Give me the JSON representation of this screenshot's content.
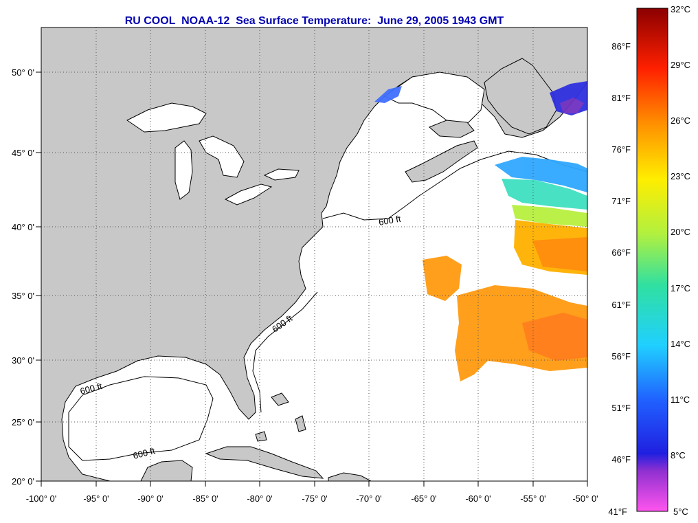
{
  "title": "RU COOL  NOAA-12  Sea Surface Temperature:  June 29, 2005 1943 GMT",
  "map": {
    "lon_labels": [
      "-100° 0'",
      "-95° 0'",
      "-90° 0'",
      "-85° 0'",
      "-80° 0'",
      "-75° 0'",
      "-70° 0'",
      "-65° 0'",
      "-60° 0'",
      "-55° 0'",
      "-50° 0'"
    ],
    "lat_labels": [
      "50° 0'",
      "45° 0'",
      "40° 0'",
      "35° 0'",
      "30° 0'",
      "25° 0'",
      "20° 0'"
    ],
    "contour_label": "600 ft",
    "colors": {
      "land": "#c8c8c8",
      "ocean": "#ffffff",
      "gridline": "#555555",
      "coast": "#000000"
    }
  },
  "colorbar": {
    "fahrenheit_labels": [
      "86°F",
      "81°F",
      "76°F",
      "71°F",
      "66°F",
      "61°F",
      "56°F",
      "51°F",
      "46°F",
      "41°F"
    ],
    "celsius_labels": [
      "32°C",
      "29°C",
      "26°C",
      "23°C",
      "20°C",
      "17°C",
      "14°C",
      "11°C",
      "8°C",
      "5°C"
    ],
    "range_c": [
      5,
      32
    ]
  }
}
